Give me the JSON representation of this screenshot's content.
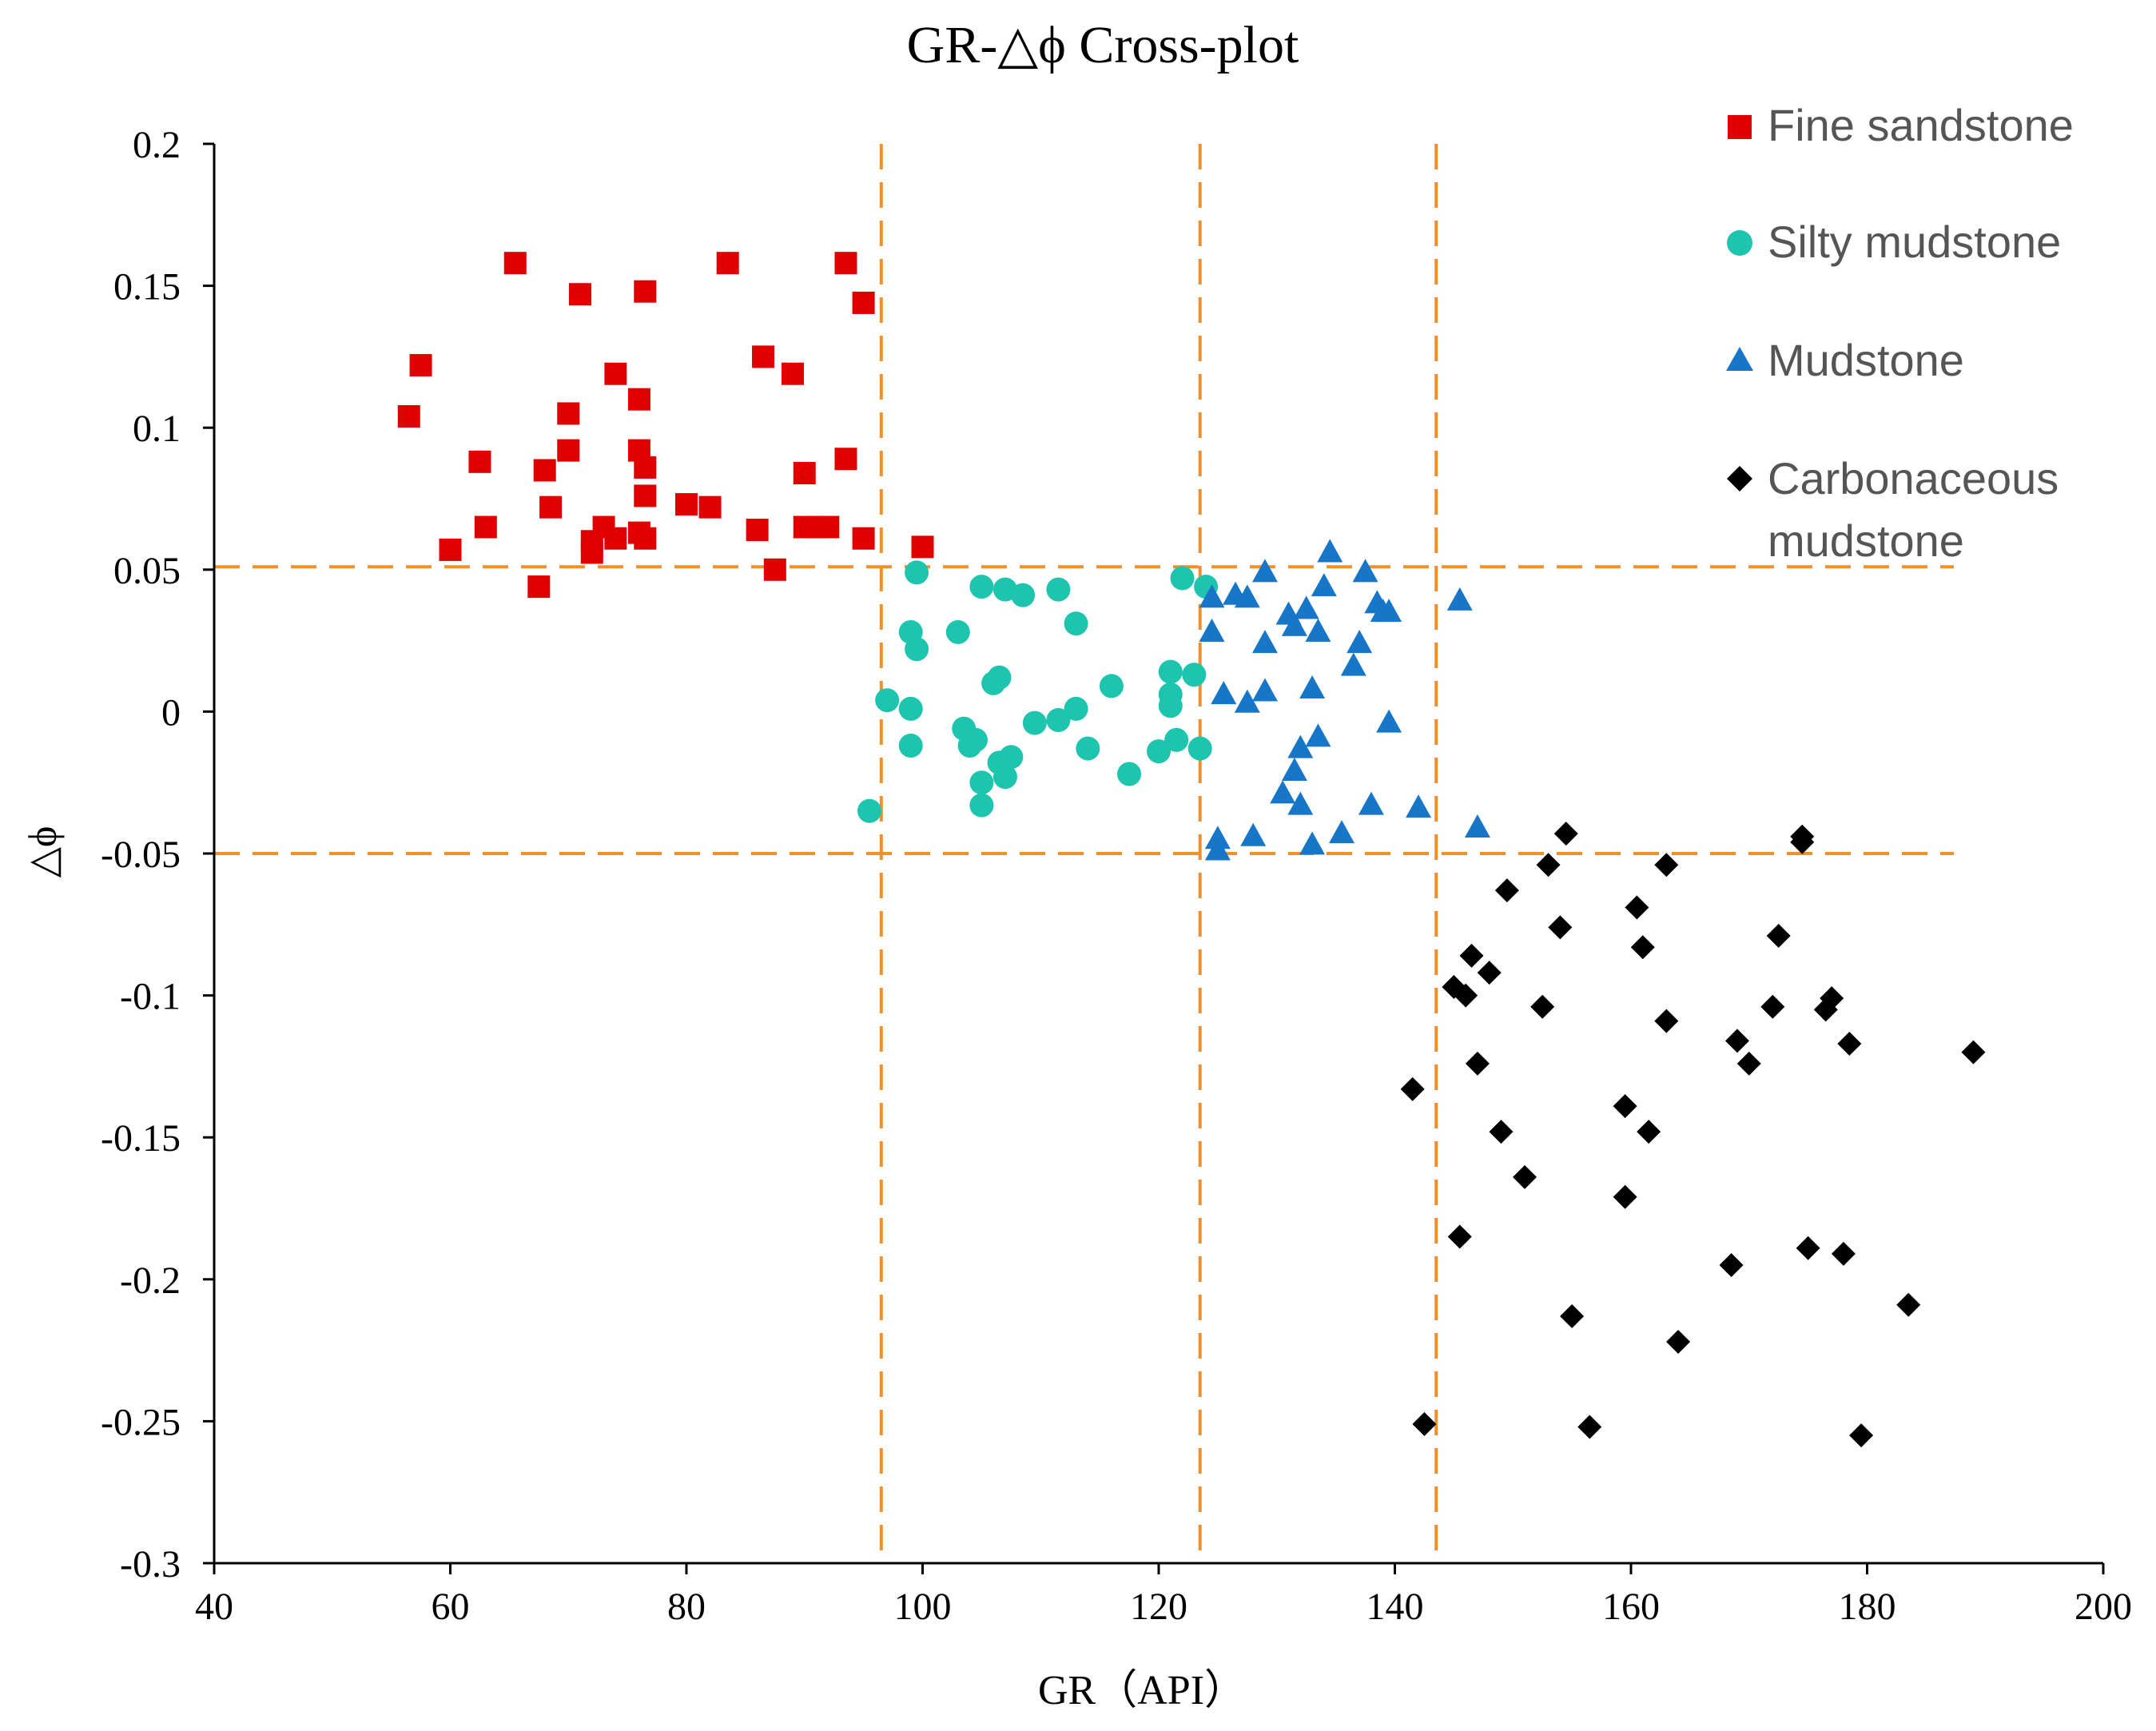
{
  "chart_data": {
    "type": "scatter",
    "title": "GR-△ϕ Cross-plot",
    "xlabel": "GR（API）",
    "ylabel": "△ϕ",
    "xlim": [
      40,
      200
    ],
    "ylim": [
      -0.3,
      0.2
    ],
    "xticks": [
      40,
      60,
      80,
      100,
      120,
      140,
      160,
      180,
      200
    ],
    "yticks": [
      -0.3,
      -0.25,
      -0.2,
      -0.15,
      -0.1,
      -0.05,
      0,
      0.05,
      0.1,
      0.15,
      0.2
    ],
    "x_tick_labels": [
      "40",
      "60",
      "80",
      "100",
      "120",
      "140",
      "160",
      "180",
      "200"
    ],
    "y_tick_labels": [
      "-0.3",
      "-0.25",
      "-0.2",
      "-0.15",
      "-0.1",
      "-0.05",
      "0",
      "0.05",
      "0.1",
      "0.15",
      "0.2"
    ],
    "grid": false,
    "legend_position": "top-right",
    "reference_lines": {
      "color": "#F0902A",
      "style": "dashed",
      "vertical_x": [
        96.5,
        123.5,
        143.5
      ],
      "horizontal_y": [
        0.051,
        -0.05
      ]
    },
    "series": [
      {
        "name": "Fine sandstone",
        "marker": "square",
        "color": "#E00000",
        "points": [
          [
            56.5,
            0.104
          ],
          [
            57.5,
            0.122
          ],
          [
            60,
            0.057
          ],
          [
            62.5,
            0.088
          ],
          [
            63,
            0.065
          ],
          [
            65.5,
            0.158
          ],
          [
            67.5,
            0.044
          ],
          [
            68,
            0.085
          ],
          [
            68.5,
            0.072
          ],
          [
            70,
            0.105
          ],
          [
            70,
            0.092
          ],
          [
            71,
            0.147
          ],
          [
            72,
            0.06
          ],
          [
            72,
            0.056
          ],
          [
            73,
            0.065
          ],
          [
            74,
            0.119
          ],
          [
            74,
            0.061
          ],
          [
            76,
            0.11
          ],
          [
            76,
            0.092
          ],
          [
            76,
            0.063
          ],
          [
            76.5,
            0.148
          ],
          [
            76.5,
            0.086
          ],
          [
            76.5,
            0.076
          ],
          [
            76.5,
            0.061
          ],
          [
            80,
            0.073
          ],
          [
            82,
            0.072
          ],
          [
            83.5,
            0.158
          ],
          [
            86,
            0.064
          ],
          [
            86.5,
            0.125
          ],
          [
            87.5,
            0.05
          ],
          [
            89,
            0.119
          ],
          [
            90,
            0.084
          ],
          [
            90,
            0.065
          ],
          [
            91,
            0.065
          ],
          [
            92,
            0.065
          ],
          [
            93.5,
            0.158
          ],
          [
            93.5,
            0.089
          ],
          [
            95,
            0.144
          ],
          [
            95,
            0.061
          ],
          [
            100,
            0.058
          ]
        ]
      },
      {
        "name": "Silty mudstone",
        "marker": "circle",
        "color": "#1DC4AE",
        "points": [
          [
            95.5,
            -0.035
          ],
          [
            97,
            0.004
          ],
          [
            99,
            0.028
          ],
          [
            99,
            0.001
          ],
          [
            99,
            -0.012
          ],
          [
            99.5,
            0.049
          ],
          [
            99.5,
            0.022
          ],
          [
            103,
            0.028
          ],
          [
            103.5,
            -0.006
          ],
          [
            104,
            -0.012
          ],
          [
            104.5,
            -0.01
          ],
          [
            105,
            0.044
          ],
          [
            105,
            -0.025
          ],
          [
            105,
            -0.033
          ],
          [
            106,
            0.01
          ],
          [
            106.5,
            0.012
          ],
          [
            106.5,
            -0.018
          ],
          [
            107,
            0.043
          ],
          [
            107,
            -0.023
          ],
          [
            107.5,
            -0.016
          ],
          [
            108.5,
            0.041
          ],
          [
            109.5,
            -0.004
          ],
          [
            111.5,
            0.043
          ],
          [
            111.5,
            -0.003
          ],
          [
            113,
            0.031
          ],
          [
            113,
            0.001
          ],
          [
            114,
            -0.013
          ],
          [
            116,
            0.009
          ],
          [
            117.5,
            -0.022
          ],
          [
            120,
            -0.014
          ],
          [
            121,
            0.014
          ],
          [
            121,
            0.006
          ],
          [
            121,
            0.002
          ],
          [
            121.5,
            -0.01
          ],
          [
            122,
            0.047
          ],
          [
            123,
            0.013
          ],
          [
            123.5,
            -0.013
          ],
          [
            124,
            0.044
          ]
        ]
      },
      {
        "name": "Mudstone",
        "marker": "triangle",
        "color": "#1776C8",
        "points": [
          [
            124.5,
            0.04
          ],
          [
            124.5,
            0.028
          ],
          [
            125,
            -0.045
          ],
          [
            125,
            -0.049
          ],
          [
            125.5,
            0.006
          ],
          [
            126.5,
            0.041
          ],
          [
            127.5,
            0.04
          ],
          [
            127.5,
            0.003
          ],
          [
            128,
            -0.044
          ],
          [
            129,
            0.024
          ],
          [
            129,
            0.049
          ],
          [
            129,
            0.007
          ],
          [
            130.5,
            -0.029
          ],
          [
            131,
            0.034
          ],
          [
            131.5,
            -0.021
          ],
          [
            131.5,
            0.03
          ],
          [
            132,
            -0.033
          ],
          [
            132,
            -0.013
          ],
          [
            132.5,
            0.036
          ],
          [
            133,
            0.008
          ],
          [
            133,
            -0.047
          ],
          [
            133.5,
            -0.009
          ],
          [
            133.5,
            0.028
          ],
          [
            134,
            0.044
          ],
          [
            134.5,
            0.056
          ],
          [
            135.5,
            -0.043
          ],
          [
            136.5,
            0.016
          ],
          [
            137,
            0.024
          ],
          [
            137.5,
            0.049
          ],
          [
            138,
            -0.033
          ],
          [
            138.5,
            0.038
          ],
          [
            139,
            0.035
          ],
          [
            139.5,
            0.035
          ],
          [
            139.5,
            -0.004
          ],
          [
            142,
            -0.034
          ],
          [
            145.5,
            0.039
          ],
          [
            147,
            -0.041
          ]
        ]
      },
      {
        "name": "Carbonaceous mudstone",
        "marker": "diamond",
        "color": "#000000",
        "points": [
          [
            141.5,
            -0.133
          ],
          [
            142.5,
            -0.251
          ],
          [
            145,
            -0.097
          ],
          [
            145.5,
            -0.185
          ],
          [
            146,
            -0.1
          ],
          [
            146.5,
            -0.086
          ],
          [
            147,
            -0.124
          ],
          [
            148,
            -0.092
          ],
          [
            149,
            -0.148
          ],
          [
            149.5,
            -0.063
          ],
          [
            151,
            -0.164
          ],
          [
            152.5,
            -0.104
          ],
          [
            153,
            -0.054
          ],
          [
            154,
            -0.076
          ],
          [
            154.5,
            -0.043
          ],
          [
            155,
            -0.213
          ],
          [
            156.5,
            -0.252
          ],
          [
            159.5,
            -0.139
          ],
          [
            159.5,
            -0.171
          ],
          [
            160.5,
            -0.069
          ],
          [
            161,
            -0.083
          ],
          [
            161.5,
            -0.148
          ],
          [
            163,
            -0.109
          ],
          [
            163,
            -0.054
          ],
          [
            164,
            -0.222
          ],
          [
            168.5,
            -0.195
          ],
          [
            169,
            -0.116
          ],
          [
            170,
            -0.124
          ],
          [
            172,
            -0.104
          ],
          [
            172.5,
            -0.079
          ],
          [
            174.5,
            -0.044
          ],
          [
            174.5,
            -0.046
          ],
          [
            175,
            -0.189
          ],
          [
            176.5,
            -0.105
          ],
          [
            177,
            -0.101
          ],
          [
            178,
            -0.191
          ],
          [
            178.5,
            -0.117
          ],
          [
            179.5,
            -0.255
          ],
          [
            183.5,
            -0.209
          ],
          [
            189,
            -0.12
          ]
        ]
      }
    ]
  },
  "legend": {
    "items": [
      {
        "label": "Fine sandstone",
        "color": "#E00000",
        "marker": "square"
      },
      {
        "label": "Silty mudstone",
        "color": "#1DC4AE",
        "marker": "circle"
      },
      {
        "label": "Mudstone",
        "color": "#1776C8",
        "marker": "triangle"
      },
      {
        "label_line1": "Carbonaceous",
        "label_line2": "mudstone",
        "color": "#000000",
        "marker": "diamond"
      }
    ]
  }
}
